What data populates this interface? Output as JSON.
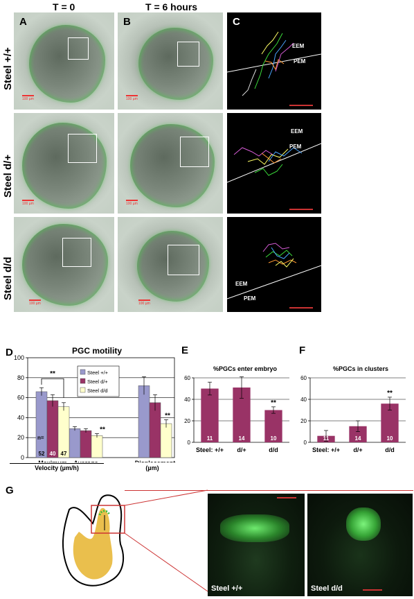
{
  "figure": {
    "top_headers": {
      "t0": "T = 0",
      "t6": "T = 6 hours"
    },
    "panel_labels": {
      "A": "A",
      "B": "B",
      "C": "C",
      "D": "D",
      "E": "E",
      "F": "F",
      "G": "G"
    },
    "row_labels": [
      "Steel +/+",
      "Steel d/+",
      "Steel d/d"
    ],
    "scale_bar_text": "100 µm",
    "region_labels": {
      "eem": "EEM",
      "pem": "PEM"
    },
    "panelG": {
      "left_tag": "Steel +/+",
      "right_tag": "Steel d/d"
    },
    "colors": {
      "steel_wt": "#9999cc",
      "steel_het": "#993366",
      "steel_dd": "#ffffcc",
      "bar_ef": "#993366",
      "gfp": "#44dd44",
      "accent_red": "#cc3333"
    }
  },
  "chart_data": [
    {
      "type": "bar",
      "title": "PGC motility",
      "groups": [
        "Maximum",
        "Average",
        "Displacement"
      ],
      "group_labels": {
        "left": "Maximum",
        "mid": "Average",
        "right": "Displacement"
      },
      "sub_labels": {
        "velocity": "Velocity (µm/h)",
        "displacement_unit": "(µm)"
      },
      "ylim": [
        0,
        100
      ],
      "yticks": [
        0,
        20,
        40,
        60,
        80,
        100
      ],
      "series": [
        {
          "name": "Steel +/+",
          "values": [
            66,
            29,
            72
          ],
          "errors": [
            4,
            2,
            9
          ]
        },
        {
          "name": "Steel d/+",
          "values": [
            57,
            27,
            55
          ],
          "errors": [
            6,
            2,
            8
          ]
        },
        {
          "name": "Steel d/d",
          "values": [
            51,
            22,
            34
          ],
          "errors": [
            4,
            2,
            4
          ]
        }
      ],
      "n_label": "n=",
      "n_counts": [
        "52",
        "40",
        "47"
      ],
      "significance": [
        "**",
        "**",
        "**"
      ],
      "legend_position": "top-right",
      "grid": true
    },
    {
      "type": "bar",
      "title": "%PGCs enter embryo",
      "categories": [
        "Steel: +/+",
        "d/+",
        "d/d"
      ],
      "values": [
        50,
        51,
        30
      ],
      "errors": [
        6,
        10,
        3
      ],
      "n_counts": [
        "11",
        "14",
        "10"
      ],
      "significance": "**",
      "ylim": [
        0,
        60
      ],
      "yticks": [
        0,
        20,
        40,
        60
      ],
      "grid": true
    },
    {
      "type": "bar",
      "title": "%PGCs in clusters",
      "categories": [
        "Steel: +/+",
        "d/+",
        "d/d"
      ],
      "values": [
        6,
        15,
        36
      ],
      "errors": [
        5,
        5,
        6
      ],
      "n_counts": [
        "11",
        "14",
        "10"
      ],
      "significance": "**",
      "ylim": [
        0,
        60
      ],
      "yticks": [
        0,
        20,
        40,
        60
      ],
      "grid": true
    }
  ]
}
